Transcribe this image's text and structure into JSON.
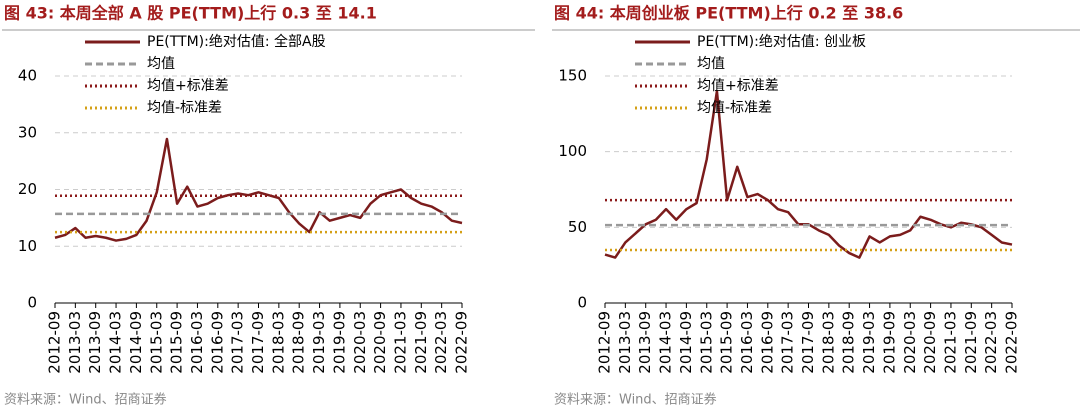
{
  "chart_data": [
    {
      "type": "line",
      "title": "图 43:  本周全部 A 股 PE(TTM)上行 0.3 至 14.1",
      "source": "资料来源：Wind、招商证券",
      "x": [
        "2012-09",
        "2012-12",
        "2013-03",
        "2013-06",
        "2013-09",
        "2013-12",
        "2014-03",
        "2014-06",
        "2014-09",
        "2014-12",
        "2015-03",
        "2015-06",
        "2015-09",
        "2015-12",
        "2016-03",
        "2016-06",
        "2016-09",
        "2016-12",
        "2017-03",
        "2017-06",
        "2017-09",
        "2017-12",
        "2018-03",
        "2018-06",
        "2018-09",
        "2018-12",
        "2019-03",
        "2019-06",
        "2019-09",
        "2019-12",
        "2020-03",
        "2020-06",
        "2020-09",
        "2020-12",
        "2021-03",
        "2021-06",
        "2021-09",
        "2021-12",
        "2022-03",
        "2022-06",
        "2022-09"
      ],
      "xticks": [
        "2012-09",
        "2013-03",
        "2013-09",
        "2014-03",
        "2014-09",
        "2015-03",
        "2015-09",
        "2016-03",
        "2016-09",
        "2017-03",
        "2017-09",
        "2018-03",
        "2018-09",
        "2019-03",
        "2019-09",
        "2020-03",
        "2020-09",
        "2021-03",
        "2021-09",
        "2022-03",
        "2022-09"
      ],
      "ylim": [
        0,
        40
      ],
      "yticks": [
        0,
        10,
        20,
        30,
        40
      ],
      "grid": true,
      "series": [
        {
          "name": "PE(TTM):绝对估值: 全部A股",
          "color": "#7b1c1c",
          "style": "solid",
          "values": [
            11.5,
            12.0,
            13.2,
            11.5,
            11.8,
            11.5,
            11.0,
            11.3,
            12.0,
            14.5,
            19.5,
            28.9,
            17.5,
            20.5,
            17.0,
            17.5,
            18.5,
            19.0,
            19.3,
            19.0,
            19.5,
            19.0,
            18.5,
            16.0,
            14.0,
            12.5,
            16.0,
            14.5,
            15.0,
            15.5,
            15.0,
            17.5,
            19.0,
            19.5,
            20.0,
            18.5,
            17.5,
            17.0,
            16.0,
            14.5,
            14.1
          ]
        },
        {
          "name": "均值",
          "color": "#999999",
          "style": "dashed",
          "value": 15.7
        },
        {
          "name": "均值+标准差",
          "color": "#8b1a1a",
          "style": "dotted",
          "value": 18.9
        },
        {
          "name": "均值-标准差",
          "color": "#d4a017",
          "style": "dotted",
          "value": 12.5
        }
      ]
    },
    {
      "type": "line",
      "title": "图 44:  本周创业板 PE(TTM)上行 0.2 至 38.6",
      "source": "资料来源：Wind、招商证券",
      "x": [
        "2012-09",
        "2012-12",
        "2013-03",
        "2013-06",
        "2013-09",
        "2013-12",
        "2014-03",
        "2014-06",
        "2014-09",
        "2014-12",
        "2015-03",
        "2015-06",
        "2015-09",
        "2015-12",
        "2016-03",
        "2016-06",
        "2016-09",
        "2016-12",
        "2017-03",
        "2017-06",
        "2017-09",
        "2017-12",
        "2018-03",
        "2018-06",
        "2018-09",
        "2018-12",
        "2019-03",
        "2019-06",
        "2019-09",
        "2019-12",
        "2020-03",
        "2020-06",
        "2020-09",
        "2020-12",
        "2021-03",
        "2021-06",
        "2021-09",
        "2021-12",
        "2022-03",
        "2022-06",
        "2022-09"
      ],
      "xticks": [
        "2012-09",
        "2013-03",
        "2013-09",
        "2014-03",
        "2014-09",
        "2015-03",
        "2015-09",
        "2016-03",
        "2016-09",
        "2017-03",
        "2017-09",
        "2018-03",
        "2018-09",
        "2019-03",
        "2019-09",
        "2020-03",
        "2020-09",
        "2021-03",
        "2021-09",
        "2022-03",
        "2022-09"
      ],
      "ylim": [
        0,
        150
      ],
      "yticks": [
        0,
        50,
        100,
        150
      ],
      "grid": true,
      "series": [
        {
          "name": "PE(TTM):绝对估值: 创业板",
          "color": "#7b1c1c",
          "style": "solid",
          "values": [
            32,
            30,
            40,
            46,
            52,
            55,
            62,
            55,
            62,
            66,
            95,
            140,
            68,
            90,
            70,
            72,
            68,
            62,
            60,
            52,
            52,
            48,
            45,
            38,
            33,
            30,
            44,
            40,
            44,
            45,
            48,
            57,
            55,
            52,
            50,
            53,
            52,
            50,
            45,
            40,
            38.6
          ]
        },
        {
          "name": "均值",
          "color": "#999999",
          "style": "dashed",
          "value": 51.5
        },
        {
          "name": "均值+标准差",
          "color": "#8b1a1a",
          "style": "dotted",
          "value": 68
        },
        {
          "name": "均值-标准差",
          "color": "#d4a017",
          "style": "dotted",
          "value": 35
        }
      ]
    }
  ]
}
